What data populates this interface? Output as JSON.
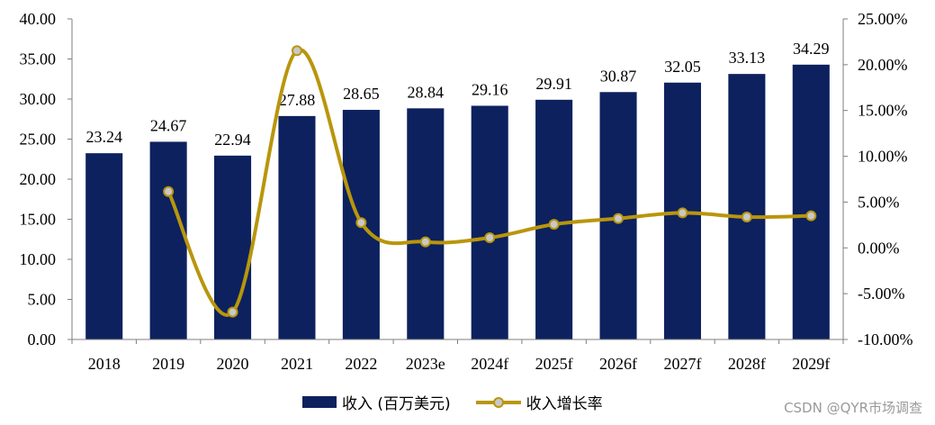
{
  "chart_data": {
    "type": "bar",
    "categories": [
      "2018",
      "2019",
      "2020",
      "2021",
      "2022",
      "2023e",
      "2024f",
      "2025f",
      "2026f",
      "2027f",
      "2028f",
      "2029f"
    ],
    "series": [
      {
        "name": "收入 (百万美元)",
        "type": "bar",
        "axis": "left",
        "color": "#0d215e",
        "values": [
          23.24,
          24.67,
          22.94,
          27.88,
          28.65,
          28.84,
          29.16,
          29.91,
          30.87,
          32.05,
          33.13,
          34.29
        ],
        "labels": [
          "23.24",
          "24.67",
          "22.94",
          "27.88",
          "28.65",
          "28.84",
          "29.16",
          "29.91",
          "30.87",
          "32.05",
          "33.13",
          "34.29"
        ]
      },
      {
        "name": "收入增长率",
        "type": "line",
        "axis": "right",
        "color": "#b8960c",
        "marker_fill": "#c8c8c8",
        "smooth": true,
        "values": [
          null,
          6.15,
          -7.01,
          21.53,
          2.76,
          0.66,
          1.11,
          2.57,
          3.21,
          3.82,
          3.37,
          3.5
        ]
      }
    ],
    "y_left": {
      "min": 0,
      "max": 40,
      "ticks": [
        "0.00",
        "5.00",
        "10.00",
        "15.00",
        "20.00",
        "25.00",
        "30.00",
        "35.00",
        "40.00"
      ]
    },
    "y_right": {
      "min": -10,
      "max": 25,
      "unit": "%",
      "ticks": [
        "-10.00%",
        "-5.00%",
        "0.00%",
        "5.00%",
        "10.00%",
        "15.00%",
        "20.00%",
        "25.00%"
      ]
    },
    "grid": false,
    "legend_position": "bottom-center"
  },
  "watermark": "CSDN @QYR市场调查"
}
